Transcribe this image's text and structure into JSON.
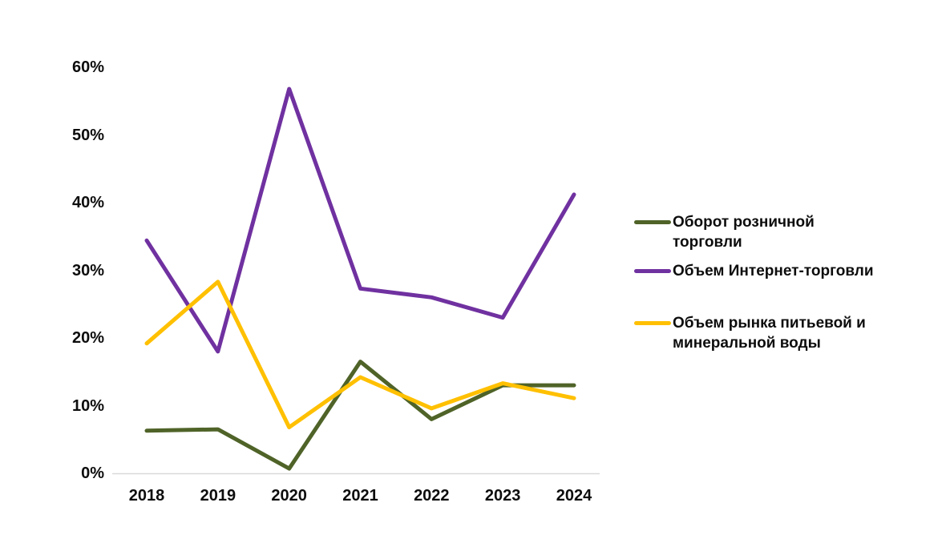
{
  "page": {
    "background_color": "#ffffff",
    "text_color": "#0d0d0d"
  },
  "chart_data": {
    "type": "line",
    "title": "",
    "xlabel": "",
    "ylabel": "",
    "grid": false,
    "legend_position": "right",
    "axis_line_color": "#d9d9d9",
    "ylim": [
      0,
      60
    ],
    "y_ticks": [
      "0%",
      "10%",
      "20%",
      "30%",
      "40%",
      "50%",
      "60%"
    ],
    "categories": [
      "2018",
      "2019",
      "2020",
      "2021",
      "2022",
      "2023",
      "2024"
    ],
    "series": [
      {
        "name": "Оборот розничной торговли",
        "color": "#4f6328",
        "values": [
          6.3,
          6.5,
          0.7,
          16.5,
          8.0,
          13.0,
          13.0
        ]
      },
      {
        "name": "Объем Интернет-торговли",
        "color": "#7031a0",
        "values": [
          34.4,
          18.0,
          56.8,
          27.3,
          26.0,
          23.0,
          41.2
        ]
      },
      {
        "name": "Объем рынка питьевой и минеральной воды",
        "color": "#ffc000",
        "values": [
          19.2,
          28.3,
          6.8,
          14.2,
          9.6,
          13.3,
          11.1
        ]
      }
    ]
  }
}
